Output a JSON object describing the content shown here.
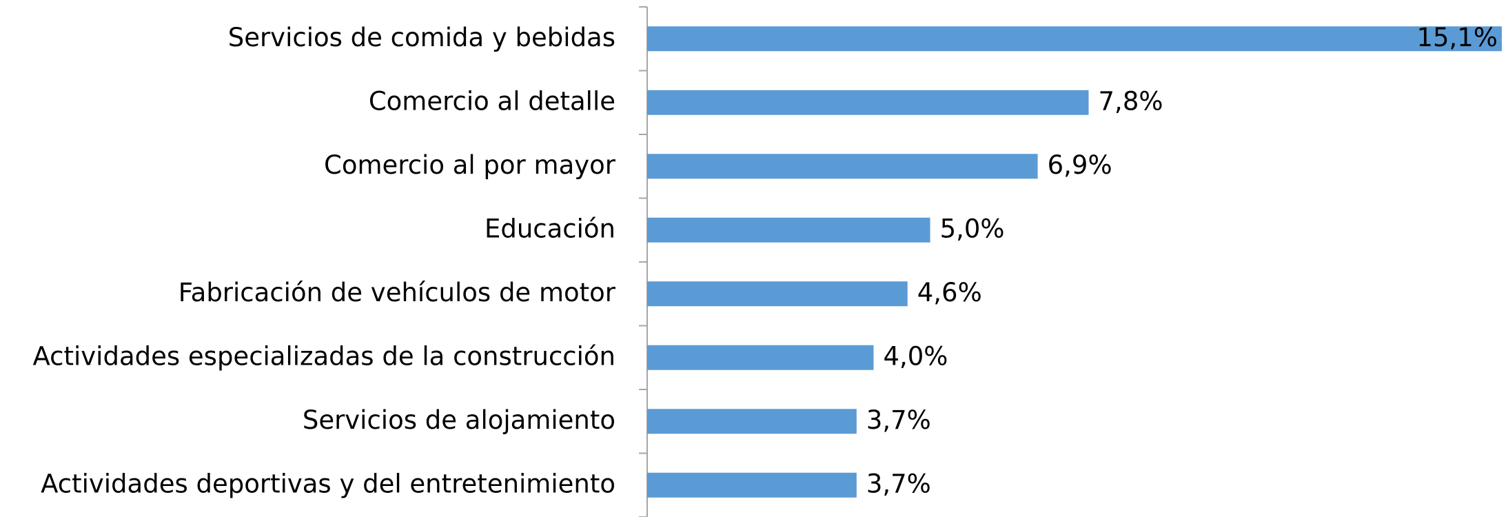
{
  "chart_data": {
    "type": "bar",
    "orientation": "horizontal",
    "categories": [
      "Servicios de comida y bebidas",
      "Comercio al detalle",
      "Comercio al por mayor",
      "Educación",
      "Fabricación de vehículos de motor",
      "Actividades especializadas de la construcción",
      "Servicios de alojamiento",
      "Actividades deportivas y del entretenimiento"
    ],
    "values": [
      15.1,
      7.8,
      6.9,
      5.0,
      4.6,
      4.0,
      3.7,
      3.7
    ],
    "value_labels": [
      "15,1%",
      "7,8%",
      "6,9%",
      "5,0%",
      "4,6%",
      "4,0%",
      "3,7%",
      "3,7%"
    ],
    "color": "#5b9bd5"
  }
}
